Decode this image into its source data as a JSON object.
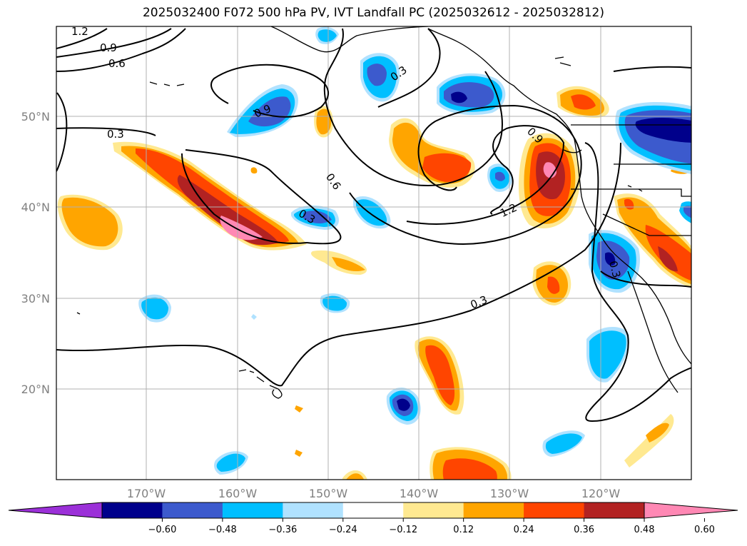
{
  "title": "2025032400 F072 500 hPa PV, IVT Landfall PC (2025032612 - 2025032812)",
  "map": {
    "lat_ticks": [
      "50°N",
      "40°N",
      "30°N",
      "20°N"
    ],
    "lon_ticks": [
      "170°W",
      "160°W",
      "150°W",
      "140°W",
      "130°W",
      "120°W"
    ],
    "contour_labels": [
      "1.2",
      "0.9",
      "0.6",
      "0.3",
      "0.9",
      "0.6",
      "0.3",
      "0.3",
      "0.9",
      "1.2",
      "0.3",
      "0.3"
    ]
  },
  "colorbar": {
    "colors": [
      "#9b30d8",
      "#00008b",
      "#3c5acd",
      "#00bfff",
      "#b0e2ff",
      "#ffffff",
      "#ffe991",
      "#ffa500",
      "#ff4500",
      "#b22222",
      "#ff88b4"
    ],
    "labels": [
      "−0.60",
      "−0.48",
      "−0.36",
      "−0.24",
      "−0.12",
      "0.12",
      "0.24",
      "0.36",
      "0.48",
      "0.60"
    ]
  },
  "colors": {
    "land_outline": "#000000",
    "grid": "#b0b0b0",
    "tick_text": "#808080"
  }
}
